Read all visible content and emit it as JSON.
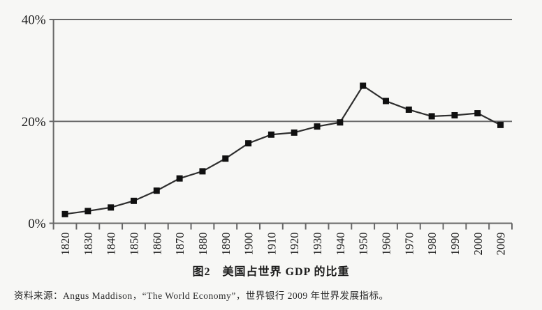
{
  "chart_data": {
    "type": "line",
    "title": "图2　美国占世界 GDP 的比重",
    "categories": [
      "1820",
      "1830",
      "1840",
      "1850",
      "1860",
      "1870",
      "1880",
      "1890",
      "1900",
      "1910",
      "1920",
      "1930",
      "1940",
      "1950",
      "1960",
      "1970",
      "1980",
      "1990",
      "2000",
      "2009"
    ],
    "values": [
      1.8,
      2.4,
      3.1,
      4.4,
      6.4,
      8.8,
      10.2,
      12.7,
      15.7,
      17.4,
      17.8,
      19.0,
      19.8,
      27.0,
      24.0,
      22.3,
      21.0,
      21.2,
      21.6,
      19.3
    ],
    "series_name": "美国占世界GDP的比重",
    "xlabel": "",
    "ylabel": "",
    "ylim": [
      0,
      40
    ],
    "y_ticks": [
      0,
      20,
      40
    ],
    "y_tick_labels": [
      "0%",
      "20%",
      "40%"
    ],
    "gridlines": [
      20,
      40
    ],
    "legend": "none",
    "marker": "filled-square",
    "x_label_rotation": -90,
    "line_color": "#2e2e2e",
    "marker_color": "#101010",
    "axis_color": "#686868",
    "text_color": "#1b1b1b",
    "background_color": "#f7f7f5",
    "source_note": "资料来源：Angus Maddison，“The World Economy”，世界银行 2009 年世界发展指标。"
  }
}
